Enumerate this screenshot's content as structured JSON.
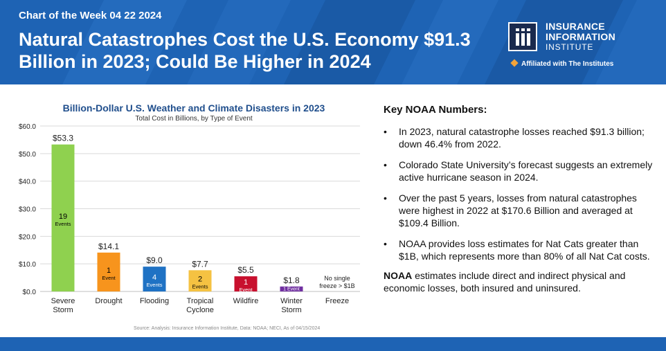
{
  "header": {
    "kicker": "Chart of the Week 04 22 2024",
    "headline": "Natural Catastrophes Cost the U.S. Economy $91.3 Billion in 2023; Could Be Higher in 2024",
    "logo_line1": "INSURANCE",
    "logo_line2": "INFORMATION",
    "logo_line3": "INSTITUTE",
    "affiliation": "Affiliated with The Institutes"
  },
  "colors": {
    "header_blue": "#1e63b4",
    "title_blue": "#1f4e8c"
  },
  "chart_data": {
    "type": "bar",
    "title": "Billion-Dollar U.S. Weather and Climate Disasters in 2023",
    "subtitle": "Total Cost in Billions, by Type of Event",
    "ylim": [
      0,
      60
    ],
    "yticks": [
      "$0.0",
      "$10.0",
      "$20.0",
      "$30.0",
      "$40.0",
      "$50.0",
      "$60.0"
    ],
    "grid": true,
    "categories": [
      [
        "Severe",
        "Storm"
      ],
      [
        "Drought"
      ],
      [
        "Flooding"
      ],
      [
        "Tropical",
        "Cyclone"
      ],
      [
        "Wildfire"
      ],
      [
        "Winter",
        "Storm"
      ],
      [
        "Freeze"
      ]
    ],
    "values": [
      53.3,
      14.1,
      9.0,
      7.7,
      5.5,
      1.8,
      0
    ],
    "value_labels": [
      "$53.3",
      "$14.1",
      "$9.0",
      "$7.7",
      "$5.5",
      "$1.8",
      ""
    ],
    "event_counts": [
      "19",
      "1",
      "4",
      "2",
      "1",
      "1 Event",
      ""
    ],
    "event_words": [
      "Events",
      "Event",
      "Events",
      "Events",
      "Event",
      "",
      ""
    ],
    "bar_colors": [
      "#8fd14f",
      "#f7941d",
      "#1f72c4",
      "#f5c242",
      "#c8102e",
      "#7030a0",
      "#ffffff"
    ],
    "count_colors": [
      "#000000",
      "#000000",
      "#ffffff",
      "#000000",
      "#ffffff",
      "#ffffff",
      "#000000"
    ],
    "no_data_note": [
      "No single",
      "freeze > $1B"
    ],
    "source": "Source: Analysis: Insurance Information Institute, Data: NOAA; NECI, As of 04/15/2024"
  },
  "key": {
    "heading": "Key NOAA Numbers:",
    "bullets": [
      "In 2023, natural catastrophe losses reached $91.3 billion; down 46.4% from 2022.",
      "Colorado State University’s forecast suggests an extremely active hurricane season in 2024.",
      "Over the past 5 years, losses from natural catastrophes were highest in 2022 at $170.6 Billion and averaged at $109.4 Billion.",
      "NOAA provides loss estimates for Nat Cats greater than $1B, which represents more than 80% of all Nat Cat costs."
    ],
    "bullet_char": "•",
    "note_bold": "NOAA",
    "note_rest": " estimates include direct and indirect physical and economic losses, both insured and uninsured."
  }
}
